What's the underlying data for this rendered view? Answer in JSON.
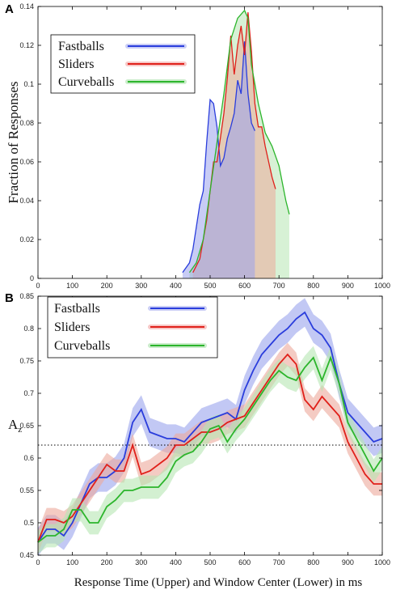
{
  "chart_data": [
    {
      "panel_label": "A",
      "type": "area",
      "ylabel": "Fraction of Responses",
      "xlim": [
        0,
        1000
      ],
      "ylim": [
        0,
        0.14
      ],
      "xticks": [
        "0",
        "100",
        "200",
        "300",
        "400",
        "500",
        "600",
        "700",
        "800",
        "900",
        "1000"
      ],
      "yticks": [
        "0",
        "0.02",
        "0.04",
        "0.06",
        "0.08",
        "0.1",
        "0.12",
        "0.14"
      ],
      "legend": {
        "placement": "top-left"
      },
      "series": [
        {
          "name": "Fastballs",
          "color": "#2a3ddc",
          "fill": "#9aa3ec",
          "x": [
            420,
            440,
            450,
            470,
            480,
            490,
            500,
            510,
            520,
            530,
            540,
            550,
            560,
            570,
            580,
            590,
            600,
            610,
            620,
            630
          ],
          "y": [
            0.003,
            0.008,
            0.015,
            0.038,
            0.045,
            0.07,
            0.092,
            0.09,
            0.078,
            0.058,
            0.062,
            0.072,
            0.078,
            0.085,
            0.102,
            0.095,
            0.122,
            0.095,
            0.08,
            0.076
          ]
        },
        {
          "name": "Sliders",
          "color": "#e0201a",
          "fill": "#eda99b",
          "x": [
            450,
            470,
            490,
            510,
            520,
            540,
            550,
            560,
            570,
            580,
            590,
            600,
            610,
            620,
            630,
            640,
            650,
            660,
            670,
            680,
            690
          ],
          "y": [
            0.003,
            0.01,
            0.03,
            0.06,
            0.06,
            0.085,
            0.103,
            0.125,
            0.105,
            0.12,
            0.13,
            0.115,
            0.137,
            0.117,
            0.09,
            0.078,
            0.078,
            0.068,
            0.06,
            0.052,
            0.046
          ]
        },
        {
          "name": "Curveballs",
          "color": "#2cb52c",
          "fill": "#b6e6b2",
          "x": [
            440,
            460,
            480,
            500,
            520,
            540,
            560,
            580,
            600,
            610,
            620,
            640,
            660,
            680,
            700,
            720,
            730
          ],
          "y": [
            0.003,
            0.008,
            0.02,
            0.045,
            0.07,
            0.095,
            0.123,
            0.134,
            0.138,
            0.134,
            0.11,
            0.09,
            0.075,
            0.068,
            0.058,
            0.04,
            0.033
          ]
        }
      ]
    },
    {
      "panel_label": "B",
      "type": "line",
      "ylabel": "Az",
      "ylabel_main": "A",
      "ylabel_sub": "z",
      "xlabel": "Response Time (Upper) and Window Center (Lower) in ms",
      "xlim": [
        0,
        1000
      ],
      "ylim": [
        0.45,
        0.85
      ],
      "xticks": [
        "0",
        "100",
        "200",
        "300",
        "400",
        "500",
        "600",
        "700",
        "800",
        "900",
        "1000"
      ],
      "yticks": [
        "0.45",
        "0.5",
        "0.55",
        "0.6",
        "0.65",
        "0.7",
        "0.75",
        "0.8",
        "0.85"
      ],
      "reference_line": 0.62,
      "legend": {
        "placement": "top-left"
      },
      "series": [
        {
          "name": "Fastballs",
          "color": "#2a3ddc",
          "band": "#9aa3ec",
          "x": [
            0,
            25,
            50,
            75,
            100,
            125,
            150,
            175,
            200,
            225,
            250,
            275,
            300,
            325,
            350,
            375,
            400,
            425,
            450,
            475,
            500,
            525,
            550,
            575,
            600,
            625,
            650,
            675,
            700,
            725,
            750,
            775,
            800,
            825,
            850,
            875,
            900,
            925,
            950,
            975,
            1000
          ],
          "y": [
            0.47,
            0.49,
            0.49,
            0.48,
            0.5,
            0.53,
            0.56,
            0.57,
            0.57,
            0.58,
            0.6,
            0.655,
            0.675,
            0.64,
            0.635,
            0.63,
            0.63,
            0.625,
            0.64,
            0.655,
            0.66,
            0.665,
            0.67,
            0.66,
            0.705,
            0.735,
            0.76,
            0.775,
            0.79,
            0.8,
            0.815,
            0.825,
            0.8,
            0.79,
            0.77,
            0.715,
            0.67,
            0.655,
            0.64,
            0.625,
            0.63
          ],
          "band_halfwidth": 0.022
        },
        {
          "name": "Sliders",
          "color": "#e0201a",
          "band": "#eda99b",
          "x": [
            0,
            25,
            50,
            75,
            100,
            125,
            150,
            175,
            200,
            225,
            250,
            275,
            300,
            325,
            350,
            375,
            400,
            425,
            450,
            475,
            500,
            525,
            550,
            575,
            600,
            625,
            650,
            675,
            700,
            725,
            750,
            775,
            800,
            825,
            850,
            875,
            900,
            925,
            950,
            975,
            1000
          ],
          "y": [
            0.47,
            0.505,
            0.505,
            0.5,
            0.51,
            0.53,
            0.55,
            0.57,
            0.59,
            0.58,
            0.58,
            0.62,
            0.575,
            0.58,
            0.59,
            0.6,
            0.62,
            0.62,
            0.63,
            0.64,
            0.64,
            0.645,
            0.655,
            0.66,
            0.665,
            0.685,
            0.705,
            0.725,
            0.745,
            0.76,
            0.745,
            0.69,
            0.675,
            0.695,
            0.68,
            0.665,
            0.625,
            0.6,
            0.575,
            0.56,
            0.56
          ],
          "band_halfwidth": 0.018
        },
        {
          "name": "Curveballs",
          "color": "#2cb52c",
          "band": "#b6e6b2",
          "x": [
            0,
            25,
            50,
            75,
            100,
            125,
            150,
            175,
            200,
            225,
            250,
            275,
            300,
            325,
            350,
            375,
            400,
            425,
            450,
            475,
            500,
            525,
            550,
            575,
            600,
            625,
            650,
            675,
            700,
            725,
            750,
            775,
            800,
            825,
            850,
            875,
            900,
            925,
            950,
            975,
            1000
          ],
          "y": [
            0.47,
            0.48,
            0.48,
            0.49,
            0.52,
            0.52,
            0.5,
            0.5,
            0.525,
            0.535,
            0.55,
            0.55,
            0.555,
            0.555,
            0.555,
            0.57,
            0.595,
            0.605,
            0.61,
            0.625,
            0.645,
            0.65,
            0.625,
            0.645,
            0.66,
            0.68,
            0.7,
            0.72,
            0.735,
            0.725,
            0.72,
            0.74,
            0.755,
            0.72,
            0.755,
            0.715,
            0.655,
            0.63,
            0.605,
            0.58,
            0.6
          ],
          "band_halfwidth": 0.018
        }
      ]
    }
  ]
}
